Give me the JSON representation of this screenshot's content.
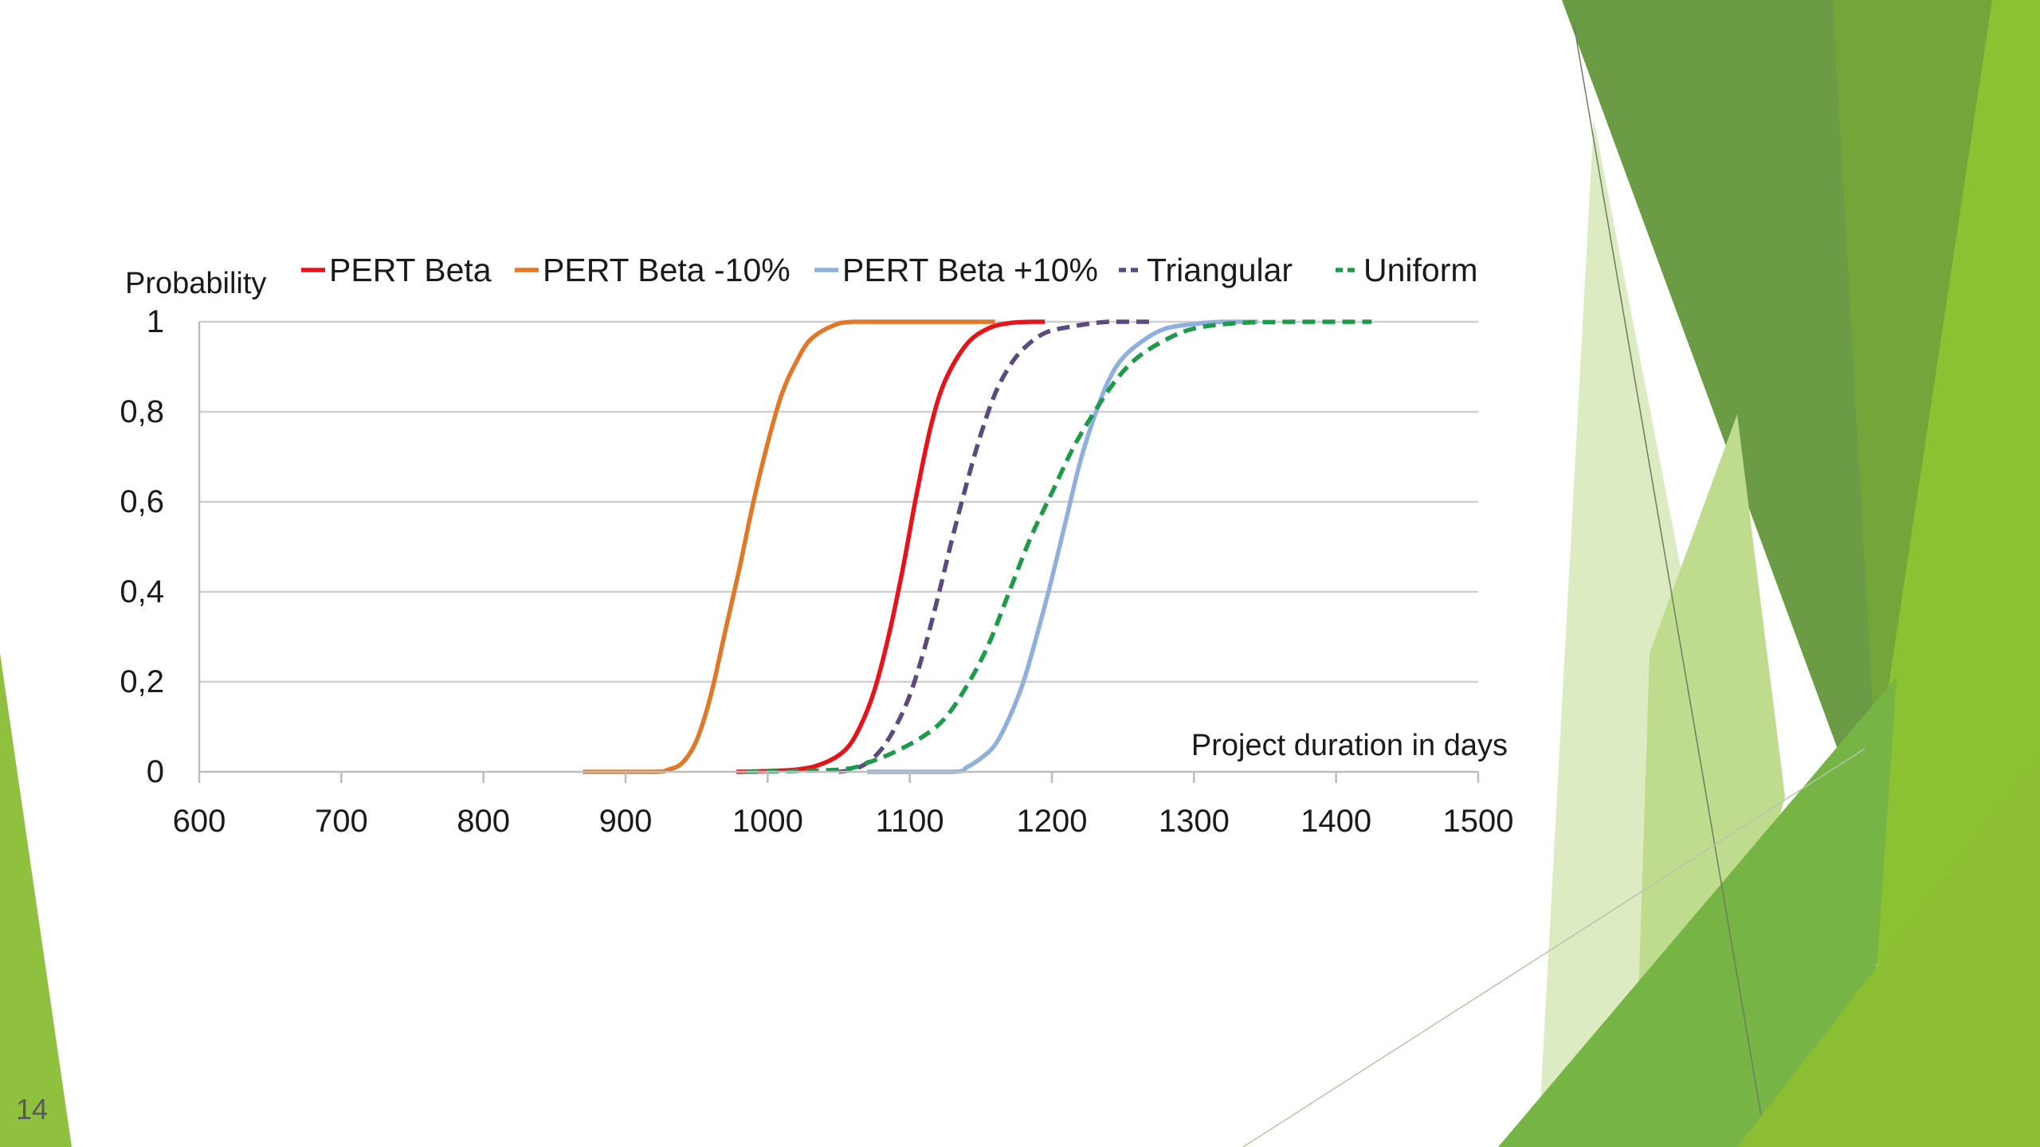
{
  "slide": {
    "number": "14"
  },
  "theme": {
    "green_dark": "#5b8f35",
    "green_mid": "#78b13d",
    "green_light": "#90c435",
    "green_pale": "#d9eabf"
  },
  "chart_data": {
    "type": "line",
    "title": "",
    "xlabel": "Project duration in days",
    "ylabel": "Probability",
    "xlim": [
      600,
      1500
    ],
    "ylim": [
      0,
      1
    ],
    "x_ticks": [
      "600",
      "700",
      "800",
      "900",
      "1000",
      "1100",
      "1200",
      "1300",
      "1400",
      "1500"
    ],
    "y_ticks": [
      "0",
      "0,2",
      "0,4",
      "0,6",
      "0,8",
      "1"
    ],
    "y_tick_values": [
      0,
      0.2,
      0.4,
      0.6,
      0.8,
      1
    ],
    "x_tick_values": [
      600,
      700,
      800,
      900,
      1000,
      1100,
      1200,
      1300,
      1400,
      1500
    ],
    "grid": "horizontal",
    "legend_position": "top",
    "series": [
      {
        "name": "PERT Beta",
        "color": "#e3151b",
        "dash": "solid",
        "points": [
          [
            978,
            0
          ],
          [
            1020,
            0.005
          ],
          [
            1040,
            0.02
          ],
          [
            1055,
            0.05
          ],
          [
            1065,
            0.1
          ],
          [
            1075,
            0.18
          ],
          [
            1085,
            0.3
          ],
          [
            1095,
            0.45
          ],
          [
            1105,
            0.62
          ],
          [
            1115,
            0.77
          ],
          [
            1125,
            0.87
          ],
          [
            1140,
            0.95
          ],
          [
            1155,
            0.985
          ],
          [
            1170,
            0.997
          ],
          [
            1185,
            1
          ],
          [
            1195,
            1
          ]
        ]
      },
      {
        "name": "PERT Beta -10%",
        "color": "#e0782a",
        "dash": "solid",
        "points": [
          [
            870,
            0
          ],
          [
            920,
            0
          ],
          [
            930,
            0.005
          ],
          [
            940,
            0.02
          ],
          [
            950,
            0.07
          ],
          [
            960,
            0.17
          ],
          [
            970,
            0.31
          ],
          [
            980,
            0.45
          ],
          [
            990,
            0.6
          ],
          [
            1000,
            0.73
          ],
          [
            1010,
            0.84
          ],
          [
            1020,
            0.91
          ],
          [
            1030,
            0.96
          ],
          [
            1045,
            0.99
          ],
          [
            1060,
            1
          ],
          [
            1100,
            1
          ],
          [
            1160,
            1
          ]
        ]
      },
      {
        "name": "PERT Beta +10%",
        "color": "#8fb0dc",
        "dash": "solid",
        "points": [
          [
            1070,
            0
          ],
          [
            1130,
            0
          ],
          [
            1140,
            0.01
          ],
          [
            1150,
            0.03
          ],
          [
            1160,
            0.06
          ],
          [
            1170,
            0.12
          ],
          [
            1180,
            0.2
          ],
          [
            1190,
            0.31
          ],
          [
            1200,
            0.43
          ],
          [
            1210,
            0.56
          ],
          [
            1220,
            0.69
          ],
          [
            1230,
            0.79
          ],
          [
            1240,
            0.87
          ],
          [
            1250,
            0.92
          ],
          [
            1265,
            0.96
          ],
          [
            1280,
            0.985
          ],
          [
            1300,
            0.995
          ],
          [
            1320,
            1
          ],
          [
            1345,
            1
          ]
        ]
      },
      {
        "name": "Triangular",
        "color": "#5b4a7e",
        "dash": "dashed",
        "points": [
          [
            1050,
            0
          ],
          [
            1060,
            0.005
          ],
          [
            1070,
            0.02
          ],
          [
            1080,
            0.05
          ],
          [
            1090,
            0.1
          ],
          [
            1100,
            0.17
          ],
          [
            1110,
            0.27
          ],
          [
            1120,
            0.39
          ],
          [
            1130,
            0.52
          ],
          [
            1140,
            0.64
          ],
          [
            1150,
            0.75
          ],
          [
            1160,
            0.84
          ],
          [
            1170,
            0.9
          ],
          [
            1180,
            0.94
          ],
          [
            1195,
            0.975
          ],
          [
            1215,
            0.99
          ],
          [
            1240,
            1
          ],
          [
            1270,
            1
          ]
        ]
      },
      {
        "name": "Uniform",
        "color": "#1f9a4a",
        "dash": "dashed",
        "points": [
          [
            985,
            0
          ],
          [
            1050,
            0.005
          ],
          [
            1070,
            0.02
          ],
          [
            1090,
            0.045
          ],
          [
            1110,
            0.08
          ],
          [
            1125,
            0.12
          ],
          [
            1140,
            0.19
          ],
          [
            1155,
            0.28
          ],
          [
            1170,
            0.4
          ],
          [
            1185,
            0.52
          ],
          [
            1200,
            0.62
          ],
          [
            1215,
            0.72
          ],
          [
            1230,
            0.8
          ],
          [
            1245,
            0.87
          ],
          [
            1260,
            0.92
          ],
          [
            1280,
            0.96
          ],
          [
            1300,
            0.985
          ],
          [
            1330,
            0.997
          ],
          [
            1370,
            1
          ],
          [
            1425,
            1
          ]
        ]
      }
    ]
  }
}
